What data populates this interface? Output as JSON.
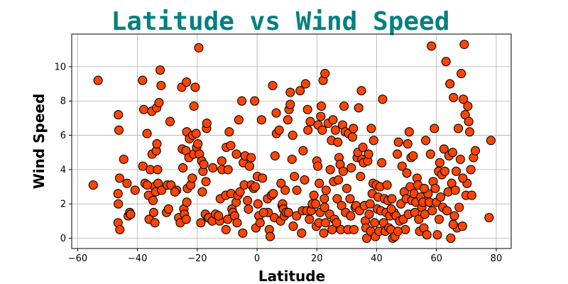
{
  "chart_data": {
    "type": "scatter",
    "title": "Latitude vs Wind Speed",
    "xlabel": "Latitude",
    "ylabel": "Wind Speed",
    "xlim": [
      -62,
      85
    ],
    "ylim": [
      -0.6,
      11.9
    ],
    "xticks": [
      -60,
      -40,
      -20,
      0,
      20,
      40,
      60,
      80
    ],
    "yticks": [
      0,
      2,
      4,
      6,
      8,
      10
    ],
    "grid": true,
    "marker_color": "#ff4500",
    "marker_edge": "#000000",
    "title_color": "#008080",
    "points": [
      [
        -54.8,
        3.1
      ],
      [
        -53.2,
        9.2
      ],
      [
        -46.4,
        7.2
      ],
      [
        -46.2,
        6.3
      ],
      [
        -46,
        3.5
      ],
      [
        -46.5,
        2.6
      ],
      [
        -46.4,
        2.0
      ],
      [
        -46.5,
        0.9
      ],
      [
        -45.9,
        0.5
      ],
      [
        -43.5,
        3.2
      ],
      [
        -43.1,
        1.3
      ],
      [
        -42.6,
        1.5
      ],
      [
        -42.3,
        1.4
      ],
      [
        -40.8,
        2.8
      ],
      [
        -38.3,
        9.2
      ],
      [
        -38.2,
        4.2
      ],
      [
        -37.9,
        7.5
      ],
      [
        -37.5,
        3.2
      ],
      [
        -36.8,
        6.1
      ],
      [
        -36.3,
        2.5
      ],
      [
        -36.1,
        1.1
      ],
      [
        -35.7,
        4.0
      ],
      [
        -35.2,
        7.4
      ],
      [
        -35.1,
        4.9
      ],
      [
        -34.8,
        2.2
      ],
      [
        -34.6,
        1.5
      ],
      [
        -34.4,
        3.0
      ],
      [
        -34.2,
        0.9
      ],
      [
        -33.9,
        2.7
      ],
      [
        -33.7,
        5.1
      ],
      [
        -33.6,
        7.6
      ],
      [
        -33.5,
        5.5
      ],
      [
        -33.3,
        4.0
      ],
      [
        -33.1,
        3.2
      ],
      [
        -32.8,
        7.9
      ],
      [
        -32.4,
        9.8
      ],
      [
        -32.1,
        8.9
      ],
      [
        -31.9,
        2.8
      ],
      [
        -30.3,
        1.5
      ],
      [
        -30,
        3.1
      ],
      [
        -29.6,
        1.7
      ],
      [
        -29.1,
        6.8
      ],
      [
        -28.8,
        3.1
      ],
      [
        -26.9,
        2.8
      ],
      [
        -26.2,
        1.2
      ],
      [
        -25.7,
        0.9
      ],
      [
        -25.2,
        8.8
      ],
      [
        -25,
        5.2
      ],
      [
        -24.8,
        4.1
      ],
      [
        -24.5,
        1.7
      ],
      [
        -24.3,
        1.4
      ],
      [
        -23.8,
        5.1
      ],
      [
        -23.7,
        1.1
      ],
      [
        -23.6,
        9.1
      ],
      [
        -23.5,
        2.1
      ],
      [
        -23.5,
        6.2
      ],
      [
        -23.3,
        2.9
      ],
      [
        -22.8,
        4.7
      ],
      [
        -22.6,
        5.8
      ],
      [
        -22.2,
        3.1
      ],
      [
        -21.7,
        3.5
      ],
      [
        -21.5,
        6.0
      ],
      [
        -21.2,
        4.9
      ],
      [
        -21.1,
        7.7
      ],
      [
        -20.7,
        8.8
      ],
      [
        -20.4,
        6.1
      ],
      [
        -20.2,
        5.3
      ],
      [
        -19.8,
        5.5
      ],
      [
        -19.5,
        11.1
      ],
      [
        -19.3,
        4.9
      ],
      [
        -18.8,
        0.9
      ],
      [
        -18.5,
        4.5
      ],
      [
        -18.3,
        2.7
      ],
      [
        -18.1,
        3.9
      ],
      [
        -17.8,
        4.3
      ],
      [
        -17.3,
        1.4
      ],
      [
        -17.1,
        3.3
      ],
      [
        -16.9,
        6.4
      ],
      [
        -16.8,
        6.7
      ],
      [
        -16.4,
        1.2
      ],
      [
        -16.1,
        1.2
      ],
      [
        -15,
        1.0
      ],
      [
        -14.8,
        4.1
      ],
      [
        -13.9,
        1.4
      ],
      [
        -12.5,
        1.0
      ],
      [
        -12.3,
        2.3
      ],
      [
        -11.8,
        4.5
      ],
      [
        -11.7,
        4.0
      ],
      [
        -10.5,
        2.5
      ],
      [
        -10.4,
        0.5
      ],
      [
        -10.3,
        5.3
      ],
      [
        -9.8,
        1.1
      ],
      [
        -9.7,
        4.0
      ],
      [
        -9.3,
        6.2
      ],
      [
        -8.8,
        5.4
      ],
      [
        -8.7,
        2.6
      ],
      [
        -8.4,
        1.7
      ],
      [
        -8.1,
        1.5
      ],
      [
        -7.5,
        1.3
      ],
      [
        -7,
        2.1
      ],
      [
        -6.9,
        4.9
      ],
      [
        -6.4,
        2.5
      ],
      [
        -6.1,
        6.9
      ],
      [
        -5.7,
        2.7
      ],
      [
        -5.1,
        8.0
      ],
      [
        -4.8,
        0.3
      ],
      [
        -4.6,
        4.4
      ],
      [
        -4.3,
        3.1
      ],
      [
        -4,
        4.8
      ],
      [
        -3.2,
        2.2
      ],
      [
        -2.9,
        1.7
      ],
      [
        -2.5,
        4.2
      ],
      [
        -2,
        4.7
      ],
      [
        -1.9,
        3.1
      ],
      [
        -1.1,
        2.9
      ],
      [
        -0.8,
        8.0
      ],
      [
        -0.6,
        3.0
      ],
      [
        -0.4,
        0.6
      ],
      [
        0.1,
        3.6
      ],
      [
        0.3,
        2.0
      ],
      [
        0.6,
        1.3
      ],
      [
        1,
        0.9
      ],
      [
        1.5,
        6.9
      ],
      [
        1.8,
        3.5
      ],
      [
        3.5,
        2.3
      ],
      [
        3.7,
        1.5
      ],
      [
        4.1,
        0.5
      ],
      [
        4.4,
        0.1
      ],
      [
        4.8,
        2.5
      ],
      [
        5.2,
        8.9
      ],
      [
        5.4,
        2.6
      ],
      [
        5.8,
        1.2
      ],
      [
        6,
        4.8
      ],
      [
        6.4,
        7.3
      ],
      [
        6.5,
        6.1
      ],
      [
        7.4,
        6.3
      ],
      [
        7.9,
        1.0
      ],
      [
        8,
        3.2
      ],
      [
        8.4,
        1.9
      ],
      [
        8.5,
        2.0
      ],
      [
        8.8,
        1.7
      ],
      [
        9.1,
        1.3
      ],
      [
        9.4,
        2.8
      ],
      [
        9.7,
        1.5
      ],
      [
        10.3,
        6.9
      ],
      [
        10.5,
        1.5
      ],
      [
        10.7,
        7.5
      ],
      [
        11.1,
        7.8
      ],
      [
        11.1,
        8.5
      ],
      [
        11.7,
        4.6
      ],
      [
        11.9,
        6.0
      ],
      [
        12.5,
        3.6
      ],
      [
        13.2,
        1.3
      ],
      [
        13.3,
        2.8
      ],
      [
        14.4,
        8.6
      ],
      [
        14.9,
        0.3
      ],
      [
        15.2,
        1.6
      ],
      [
        15.4,
        5.1
      ],
      [
        15.9,
        3.4
      ],
      [
        16.2,
        9.0
      ],
      [
        16.6,
        1.6
      ],
      [
        16.9,
        7.5
      ],
      [
        17,
        6.3
      ],
      [
        17.5,
        1.1
      ],
      [
        17.8,
        6.8
      ],
      [
        18.1,
        1.6
      ],
      [
        18.5,
        2.0
      ],
      [
        19,
        2.5
      ],
      [
        19.6,
        2.0
      ],
      [
        19.8,
        0.7
      ],
      [
        20,
        4.5
      ],
      [
        20.3,
        4.2
      ],
      [
        20.4,
        6.6
      ],
      [
        20.7,
        0.9
      ],
      [
        20.8,
        3.2
      ],
      [
        21.1,
        1.5
      ],
      [
        21.3,
        7.1
      ],
      [
        21.5,
        7.7
      ],
      [
        21.8,
        6.3
      ],
      [
        22.1,
        9.2
      ],
      [
        22.3,
        0.3
      ],
      [
        22.5,
        2.3
      ],
      [
        22.6,
        1.8
      ],
      [
        22.7,
        9.6
      ],
      [
        22.9,
        0.9
      ],
      [
        23.1,
        2.8
      ],
      [
        23.8,
        6.7
      ],
      [
        24.3,
        1.4
      ],
      [
        24.5,
        4.0
      ],
      [
        24.9,
        5.7
      ],
      [
        25.1,
        0.5
      ],
      [
        25.4,
        6.9
      ],
      [
        25.6,
        3.3
      ],
      [
        25.9,
        1.1
      ],
      [
        26.2,
        6.3
      ],
      [
        26.8,
        2.3
      ],
      [
        27,
        5.6
      ],
      [
        27.2,
        3.4
      ],
      [
        27.4,
        4.7
      ],
      [
        27.8,
        4.3
      ],
      [
        28,
        0.5
      ],
      [
        28.3,
        1.9
      ],
      [
        28.6,
        6.6
      ],
      [
        28.8,
        3.9
      ],
      [
        29.1,
        7.7
      ],
      [
        29.5,
        6.2
      ],
      [
        29.6,
        1.5
      ],
      [
        30,
        2.9
      ],
      [
        30.4,
        0.5
      ],
      [
        30.6,
        6.1
      ],
      [
        31.1,
        2.3
      ],
      [
        31.3,
        1.3
      ],
      [
        31.5,
        4.1
      ],
      [
        31.9,
        5.9
      ],
      [
        32.2,
        6.4
      ],
      [
        32.4,
        0.5
      ],
      [
        32.8,
        1.8
      ],
      [
        33.1,
        1.9
      ],
      [
        33.5,
        4.7
      ],
      [
        33.7,
        5.0
      ],
      [
        34,
        7.6
      ],
      [
        34.3,
        1.6
      ],
      [
        34.6,
        3.6
      ],
      [
        34.9,
        8.6
      ],
      [
        35.1,
        4.6
      ],
      [
        35.4,
        5.3
      ],
      [
        35.6,
        4.4
      ],
      [
        35.9,
        1.9
      ],
      [
        36.2,
        1.0
      ],
      [
        36.4,
        0.6
      ],
      [
        36.7,
        0.0
      ],
      [
        37,
        4.5
      ],
      [
        37.3,
        4.9
      ],
      [
        37.5,
        1.4
      ],
      [
        37.8,
        2.0
      ],
      [
        38,
        0.4
      ],
      [
        38.2,
        6.4
      ],
      [
        38.5,
        2.6
      ],
      [
        38.8,
        3.2
      ],
      [
        39,
        5.7
      ],
      [
        39.3,
        0.9
      ],
      [
        39.6,
        0.1
      ],
      [
        39.9,
        3.1
      ],
      [
        40.2,
        1.7
      ],
      [
        40.5,
        2.4
      ],
      [
        40.8,
        0.4
      ],
      [
        41.1,
        3.0
      ],
      [
        41.4,
        1.6
      ],
      [
        41.7,
        4.4
      ],
      [
        42,
        8.1
      ],
      [
        42.3,
        0.9
      ],
      [
        42.6,
        2.3
      ],
      [
        42.9,
        0.4
      ],
      [
        43.2,
        1.5
      ],
      [
        43.5,
        3.1
      ],
      [
        43.8,
        2.2
      ],
      [
        44.1,
        0.6
      ],
      [
        44.4,
        1.3
      ],
      [
        44.8,
        0.5
      ],
      [
        45.1,
        2.3
      ],
      [
        45.4,
        0.0
      ],
      [
        45.8,
        1.5
      ],
      [
        46.1,
        0.1
      ],
      [
        46.5,
        1.3
      ],
      [
        46.9,
        4.9
      ],
      [
        47.3,
        5.6
      ],
      [
        47.7,
        1.0
      ],
      [
        48.1,
        2.0
      ],
      [
        48.5,
        4.2
      ],
      [
        48.9,
        1.1
      ],
      [
        49.2,
        2.7
      ],
      [
        49.6,
        0.5
      ],
      [
        49.9,
        2.3
      ],
      [
        50.1,
        3.8
      ],
      [
        50.4,
        5.5
      ],
      [
        50.6,
        1.4
      ],
      [
        50.9,
        6.2
      ],
      [
        51.2,
        3.0
      ],
      [
        51.5,
        4.7
      ],
      [
        51.8,
        2.2
      ],
      [
        52.2,
        4.8
      ],
      [
        52.5,
        2.6
      ],
      [
        52.8,
        1.5
      ],
      [
        53.1,
        2.1
      ],
      [
        53.5,
        3.5
      ],
      [
        53.8,
        3.1
      ],
      [
        54.1,
        1.1
      ],
      [
        54.4,
        0.4
      ],
      [
        54.8,
        2.4
      ],
      [
        55.1,
        1.8
      ],
      [
        55.5,
        2.1
      ],
      [
        55.8,
        0.6
      ],
      [
        56.1,
        1.4
      ],
      [
        56.4,
        5.7
      ],
      [
        56.8,
        0.2
      ],
      [
        57.2,
        2.6
      ],
      [
        57.6,
        2.1
      ],
      [
        58,
        4.9
      ],
      [
        58.3,
        11.2
      ],
      [
        58.6,
        1.6
      ],
      [
        58.9,
        3.3
      ],
      [
        59.3,
        6.4
      ],
      [
        59.6,
        2.9
      ],
      [
        60,
        2.1
      ],
      [
        60.3,
        0.2
      ],
      [
        60.7,
        3.9
      ],
      [
        61.1,
        4.4
      ],
      [
        61.4,
        2.4
      ],
      [
        61.8,
        3.7
      ],
      [
        62.1,
        1.8
      ],
      [
        62.5,
        5.2
      ],
      [
        62.8,
        3.9
      ],
      [
        63.2,
        10.3
      ],
      [
        63.5,
        1.6
      ],
      [
        63.9,
        2.7
      ],
      [
        64.2,
        4.8
      ],
      [
        64.5,
        9.0
      ],
      [
        64.8,
        0.0
      ],
      [
        65.1,
        3.2
      ],
      [
        65.4,
        5.0
      ],
      [
        65.7,
        8.2
      ],
      [
        66,
        1.3
      ],
      [
        66.3,
        2.8
      ],
      [
        66.6,
        3.9
      ],
      [
        66.9,
        0.6
      ],
      [
        67.3,
        6.4
      ],
      [
        67.6,
        1.8
      ],
      [
        68,
        4.6
      ],
      [
        68.3,
        9.6
      ],
      [
        68.7,
        0.7
      ],
      [
        69,
        8.1
      ],
      [
        69.3,
        11.3
      ],
      [
        69.6,
        7.2
      ],
      [
        69.9,
        2.5
      ],
      [
        70.2,
        3.2
      ],
      [
        70.5,
        7.7
      ],
      [
        70.8,
        6.8
      ],
      [
        71.1,
        6.2
      ],
      [
        71.5,
        4.0
      ],
      [
        71.8,
        2.5
      ],
      [
        72.4,
        4.7
      ],
      [
        73,
        5.1
      ],
      [
        77.6,
        1.2
      ],
      [
        78.2,
        5.7
      ],
      [
        -44.6,
        4.6
      ],
      [
        -36.7,
        3.1
      ],
      [
        -27.5,
        2.7
      ],
      [
        -12.9,
        1.3
      ],
      [
        -6.7,
        0.9
      ],
      [
        2.2,
        1.5
      ],
      [
        12.1,
        0.7
      ],
      [
        26.6,
        0.9
      ],
      [
        44.9,
        1.7
      ],
      [
        47.1,
        0.4
      ],
      [
        55.9,
        2.9
      ],
      [
        60.9,
        1.1
      ],
      [
        65.6,
        0.8
      ],
      [
        68.8,
        3.5
      ]
    ]
  }
}
